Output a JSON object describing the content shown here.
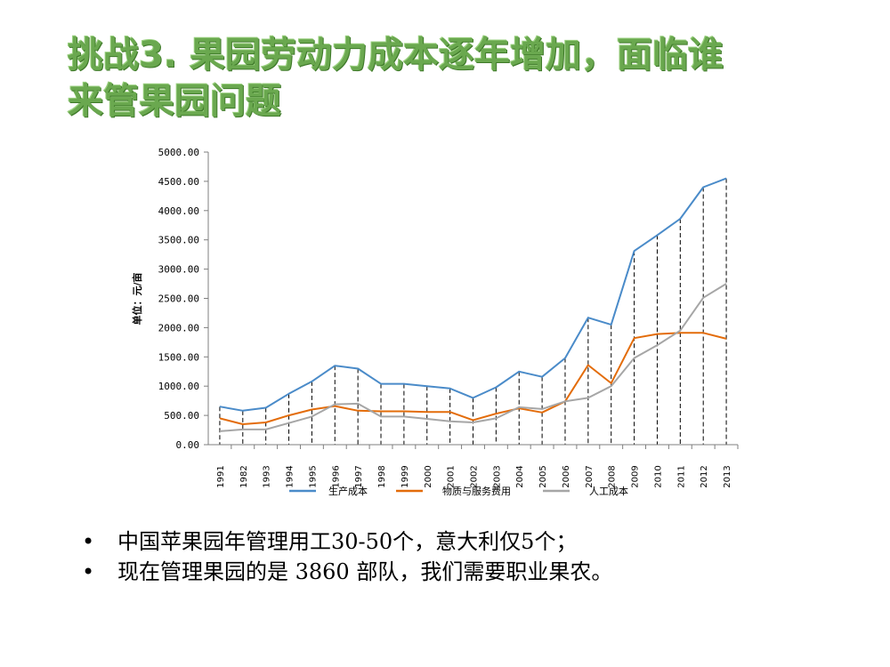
{
  "title": {
    "line1": "挑战3. 果园劳动力成本逐年增加，面临谁",
    "line2": "来管果园问题"
  },
  "bullets": [
    "中国苹果园年管理用工30-50个，意大利仅5个；",
    "现在管理果园的是 3860 部队，我们需要职业果农。"
  ],
  "bullet_char": "•",
  "chart_data": {
    "type": "line",
    "ylabel": "单位：元/亩",
    "ylim": [
      0,
      5000
    ],
    "yticks": [
      "0.00",
      "500.00",
      "1000.00",
      "1500.00",
      "2000.00",
      "2500.00",
      "3000.00",
      "3500.00",
      "4000.00",
      "4500.00",
      "5000.00"
    ],
    "categories": [
      "1991",
      "1982",
      "1993",
      "1994",
      "1995",
      "1996",
      "1997",
      "1998",
      "1999",
      "2000",
      "2001",
      "2002",
      "2003",
      "2004",
      "2005",
      "2006",
      "2007",
      "2008",
      "2009",
      "2010",
      "2011",
      "2012",
      "2013"
    ],
    "series": [
      {
        "name": "生产成本",
        "color": "#4a8bc9",
        "values": [
          650,
          580,
          630,
          870,
          1080,
          1350,
          1300,
          1040,
          1040,
          1000,
          960,
          800,
          980,
          1250,
          1160,
          1480,
          2170,
          2050,
          3310,
          3580,
          3860,
          4400,
          4550
        ]
      },
      {
        "name": "物质与服务费用",
        "color": "#e36c0a",
        "values": [
          450,
          350,
          380,
          500,
          600,
          660,
          580,
          570,
          570,
          560,
          560,
          420,
          530,
          620,
          550,
          740,
          1360,
          1050,
          1820,
          1890,
          1910,
          1910,
          1810
        ]
      },
      {
        "name": "人工成本",
        "color": "#a6a6a6",
        "values": [
          230,
          260,
          260,
          370,
          480,
          690,
          700,
          480,
          480,
          440,
          400,
          380,
          450,
          640,
          610,
          740,
          800,
          1000,
          1480,
          1700,
          1950,
          2510,
          2750
        ]
      }
    ],
    "legend_position": "bottom",
    "drop_lines": true
  }
}
